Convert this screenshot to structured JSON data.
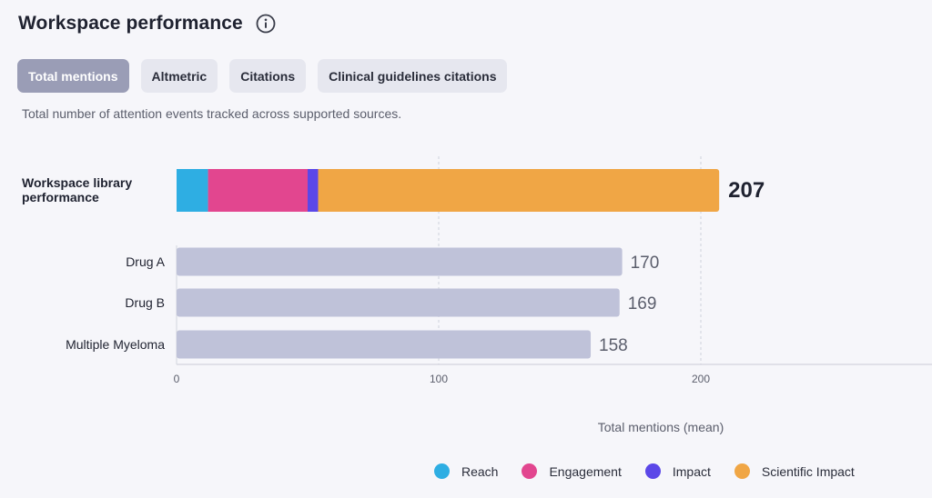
{
  "header": {
    "title": "Workspace performance"
  },
  "tabs": [
    {
      "label": "Total mentions",
      "active": true
    },
    {
      "label": "Altmetric",
      "active": false
    },
    {
      "label": "Citations",
      "active": false
    },
    {
      "label": "Clinical guidelines citations",
      "active": false
    }
  ],
  "description": "Total number of attention events tracked across supported sources.",
  "colors": {
    "reach": "#2eaee3",
    "engagement": "#e2468f",
    "impact": "#5b47e8",
    "scientific_impact": "#f0a645",
    "comparison_bar": "#bfc2d9",
    "active_tab": "#9a9db6"
  },
  "chart_data": {
    "type": "bar",
    "orientation": "horizontal",
    "title": "",
    "xlabel": "Total mentions (mean)",
    "ylabel": "",
    "xlim": [
      0,
      280
    ],
    "x_ticks": [
      0,
      100,
      200
    ],
    "grid": true,
    "legend_position": "bottom-right",
    "primary": {
      "category": "Workspace library performance",
      "category_lines": [
        "Workspace library",
        "performance"
      ],
      "total": 207,
      "total_label": "207",
      "stacks": [
        {
          "name": "Reach",
          "value": 12,
          "color": "#2eaee3"
        },
        {
          "name": "Engagement",
          "value": 38,
          "color": "#e2468f"
        },
        {
          "name": "Impact",
          "value": 4,
          "color": "#5b47e8"
        },
        {
          "name": "Scientific Impact",
          "value": 153,
          "color": "#f0a645"
        }
      ]
    },
    "comparisons": [
      {
        "category": "Drug A",
        "value": 170,
        "label": "170"
      },
      {
        "category": "Drug B",
        "value": 169,
        "label": "169"
      },
      {
        "category": "Multiple Myeloma",
        "value": 158,
        "label": "158"
      }
    ],
    "legend": [
      {
        "name": "Reach",
        "color": "#2eaee3"
      },
      {
        "name": "Engagement",
        "color": "#e2468f"
      },
      {
        "name": "Impact",
        "color": "#5b47e8"
      },
      {
        "name": "Scientific Impact",
        "color": "#f0a645"
      }
    ]
  }
}
